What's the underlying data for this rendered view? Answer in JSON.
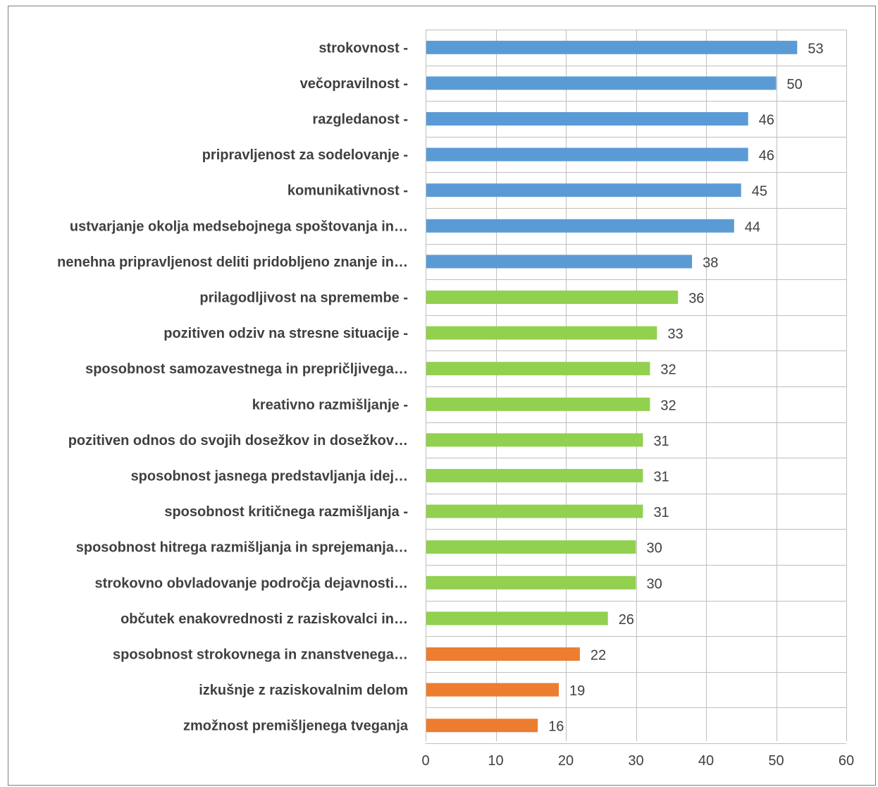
{
  "chart_data": {
    "type": "bar",
    "orientation": "horizontal",
    "title": "",
    "xlabel": "",
    "ylabel": "",
    "xlim": [
      0,
      60
    ],
    "ticks": [
      0,
      10,
      20,
      30,
      40,
      50,
      60
    ],
    "grid": true,
    "legend": "none",
    "colors": {
      "blue": "#5b9bd5",
      "green": "#92d050",
      "orange": "#ed7d31"
    },
    "categories": [
      "strokovnost -",
      "večopravilnost -",
      "razgledanost -",
      "pripravljenost za sodelovanje -",
      "komunikativnost -",
      "ustvarjanje okolja medsebojnega spoštovanja in…",
      "nenehna pripravljenost deliti pridobljeno znanje in…",
      "prilagodljivost na spremembe -",
      "pozitiven odziv na stresne situacije -",
      "sposobnost samozavestnega in prepričljivega…",
      "kreativno razmišljanje -",
      "pozitiven odnos do svojih dosežkov in dosežkov…",
      "sposobnost jasnega predstavljanja idej…",
      "sposobnost kritičnega razmišljanja -",
      "sposobnost hitrega razmišljanja in sprejemanja…",
      "strokovno obvladovanje področja dejavnosti…",
      "občutek enakovrednosti z raziskovalci in…",
      "sposobnost strokovnega in znanstvenega…",
      "izkušnje z raziskovalnim delom",
      "zmožnost premišljenega tveganja"
    ],
    "values": [
      53,
      50,
      46,
      46,
      45,
      44,
      38,
      36,
      33,
      32,
      32,
      31,
      31,
      31,
      30,
      30,
      26,
      22,
      19,
      16
    ],
    "bar_colors": [
      "blue",
      "blue",
      "blue",
      "blue",
      "blue",
      "blue",
      "blue",
      "green",
      "green",
      "green",
      "green",
      "green",
      "green",
      "green",
      "green",
      "green",
      "green",
      "orange",
      "orange",
      "orange"
    ]
  }
}
